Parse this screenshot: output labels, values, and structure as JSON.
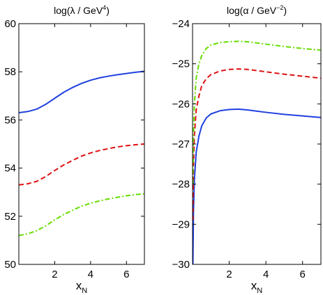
{
  "chart_data": [
    {
      "type": "line",
      "title": {
        "base": "log(λ / GeV",
        "sup": "4",
        "tail": ")"
      },
      "xlabel": {
        "base": "x",
        "sub": "N"
      },
      "xlim": [
        0,
        7
      ],
      "ylim": [
        50,
        60
      ],
      "xticks": [
        2,
        4,
        6
      ],
      "yticks": [
        50,
        52,
        54,
        56,
        58,
        60
      ],
      "grid": false,
      "series": [
        {
          "style": "solid",
          "color": "#2040e0",
          "x": [
            0,
            0.5,
            1,
            1.5,
            2,
            2.5,
            3,
            3.5,
            4,
            4.5,
            5,
            5.5,
            6,
            6.5,
            7
          ],
          "y": [
            56.3,
            56.35,
            56.45,
            56.65,
            56.9,
            57.15,
            57.35,
            57.52,
            57.65,
            57.75,
            57.82,
            57.88,
            57.93,
            57.98,
            58.02
          ]
        },
        {
          "style": "dashed",
          "color": "#e01010",
          "x": [
            0,
            0.5,
            1,
            1.5,
            2,
            2.5,
            3,
            3.5,
            4,
            4.5,
            5,
            5.5,
            6,
            6.5,
            7
          ],
          "y": [
            53.3,
            53.35,
            53.45,
            53.65,
            53.9,
            54.13,
            54.32,
            54.5,
            54.63,
            54.73,
            54.81,
            54.88,
            54.93,
            54.97,
            55.0
          ]
        },
        {
          "style": "dashdot",
          "color": "#66dd00",
          "x": [
            0,
            0.5,
            1,
            1.5,
            2,
            2.5,
            3,
            3.5,
            4,
            4.5,
            5,
            5.5,
            6,
            6.5,
            7
          ],
          "y": [
            51.2,
            51.27,
            51.4,
            51.6,
            51.85,
            52.07,
            52.25,
            52.42,
            52.54,
            52.64,
            52.72,
            52.79,
            52.85,
            52.9,
            52.93
          ]
        }
      ]
    },
    {
      "type": "line",
      "title": {
        "base": "log(α / GeV",
        "sup": "−2",
        "tail": ")"
      },
      "xlabel": {
        "base": "x",
        "sub": "N"
      },
      "xlim": [
        0,
        7
      ],
      "ylim": [
        -30,
        -24
      ],
      "xticks": [
        2,
        4,
        6
      ],
      "yticks": [
        -30,
        -29,
        -28,
        -27,
        -26,
        -25,
        -24
      ],
      "ytick_labels": [
        "−30",
        "−29",
        "−28",
        "−27",
        "−26",
        "−25",
        "−24"
      ],
      "grid": false,
      "series": [
        {
          "style": "solid",
          "color": "#2040e0",
          "x": [
            0.02,
            0.05,
            0.1,
            0.2,
            0.35,
            0.5,
            0.75,
            1,
            1.5,
            2,
            2.5,
            3,
            3.5,
            4,
            5,
            6,
            7
          ],
          "y": [
            -30.0,
            -28.7,
            -27.9,
            -27.2,
            -26.8,
            -26.55,
            -26.35,
            -26.25,
            -26.17,
            -26.14,
            -26.13,
            -26.15,
            -26.18,
            -26.21,
            -26.26,
            -26.3,
            -26.34
          ]
        },
        {
          "style": "dashed",
          "color": "#e01010",
          "x": [
            0.02,
            0.05,
            0.1,
            0.2,
            0.35,
            0.5,
            0.75,
            1,
            1.5,
            2,
            2.5,
            3,
            3.5,
            4,
            5,
            6,
            7
          ],
          "y": [
            -28.9,
            -27.6,
            -26.8,
            -26.15,
            -25.8,
            -25.55,
            -25.37,
            -25.27,
            -25.18,
            -25.14,
            -25.13,
            -25.14,
            -25.17,
            -25.2,
            -25.26,
            -25.31,
            -25.36
          ]
        },
        {
          "style": "dashdot",
          "color": "#66dd00",
          "x": [
            0.02,
            0.05,
            0.1,
            0.2,
            0.35,
            0.5,
            0.75,
            1,
            1.5,
            2,
            2.5,
            3,
            3.5,
            4,
            5,
            6,
            7
          ],
          "y": [
            -28.0,
            -26.8,
            -26.0,
            -25.35,
            -25.0,
            -24.8,
            -24.62,
            -24.53,
            -24.47,
            -24.45,
            -24.44,
            -24.45,
            -24.48,
            -24.51,
            -24.57,
            -24.62,
            -24.66
          ]
        }
      ]
    }
  ]
}
